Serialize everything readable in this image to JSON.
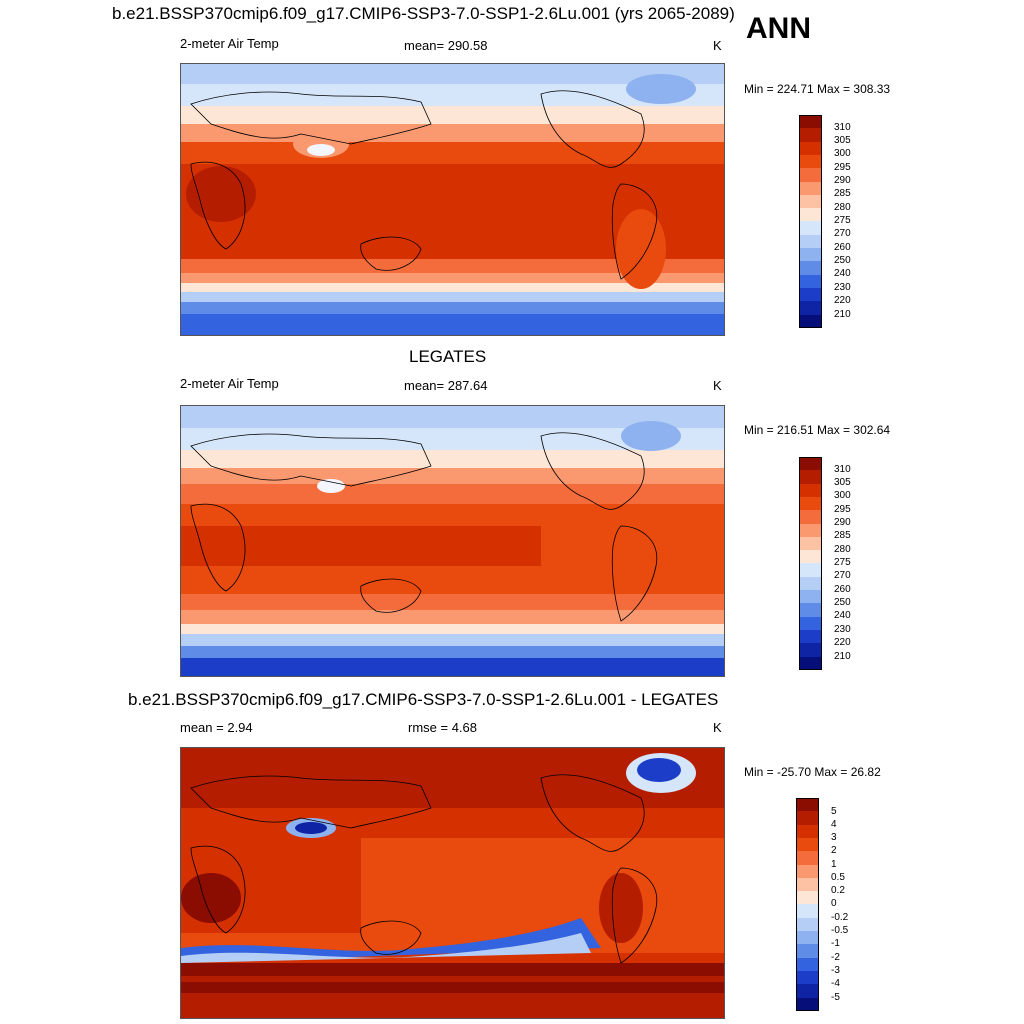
{
  "season": "ANN",
  "panels": [
    {
      "title": "b.e21.BSSP370cmip6.f09_g17.CMIP6-SSP3-7.0-SSP1-2.6Lu.001 (yrs 2065-2089)",
      "left_label": "2-meter Air Temp",
      "center_label": "mean= 290.58",
      "unit": "K",
      "minmax": "Min = 224.71 Max = 308.33",
      "colorbar": {
        "ticks": [
          "310",
          "305",
          "300",
          "295",
          "290",
          "285",
          "280",
          "275",
          "270",
          "260",
          "250",
          "240",
          "230",
          "220",
          "210"
        ],
        "colors": [
          "#8b0c00",
          "#b51d00",
          "#d43000",
          "#e94a0d",
          "#f46c3b",
          "#fa9870",
          "#fdc2a4",
          "#fde6d5",
          "#d6e6fa",
          "#b4cef5",
          "#8eb1f0",
          "#5f8ce7",
          "#3463e0",
          "#1c3dc8",
          "#0e24a4",
          "#060e7a"
        ]
      }
    },
    {
      "title": "LEGATES",
      "left_label": "2-meter Air Temp",
      "center_label": "mean= 287.64",
      "unit": "K",
      "minmax": "Min = 216.51 Max = 302.64",
      "colorbar": {
        "ticks": [
          "310",
          "305",
          "300",
          "295",
          "290",
          "285",
          "280",
          "275",
          "270",
          "260",
          "250",
          "240",
          "230",
          "220",
          "210"
        ],
        "colors": [
          "#8b0c00",
          "#b51d00",
          "#d43000",
          "#e94a0d",
          "#f46c3b",
          "#fa9870",
          "#fdc2a4",
          "#fde6d5",
          "#d6e6fa",
          "#b4cef5",
          "#8eb1f0",
          "#5f8ce7",
          "#3463e0",
          "#1c3dc8",
          "#0e24a4",
          "#060e7a"
        ]
      }
    },
    {
      "title": "b.e21.BSSP370cmip6.f09_g17.CMIP6-SSP3-7.0-SSP1-2.6Lu.001 - LEGATES",
      "left_label": "mean =   2.94",
      "center_label": "rmse =   4.68",
      "unit": "K",
      "minmax": "Min = -25.70 Max =  26.82",
      "colorbar": {
        "ticks": [
          "5",
          "4",
          "3",
          "2",
          "1",
          "0.5",
          "0.2",
          "0",
          "-0.2",
          "-0.5",
          "-1",
          "-2",
          "-3",
          "-4",
          "-5"
        ],
        "colors": [
          "#8b0c00",
          "#b51d00",
          "#d43000",
          "#e94a0d",
          "#f46c3b",
          "#fa9870",
          "#fdc2a4",
          "#fde6d5",
          "#d6e6fa",
          "#b4cef5",
          "#8eb1f0",
          "#5f8ce7",
          "#3463e0",
          "#1c3dc8",
          "#0e24a4",
          "#060e7a"
        ]
      }
    }
  ]
}
